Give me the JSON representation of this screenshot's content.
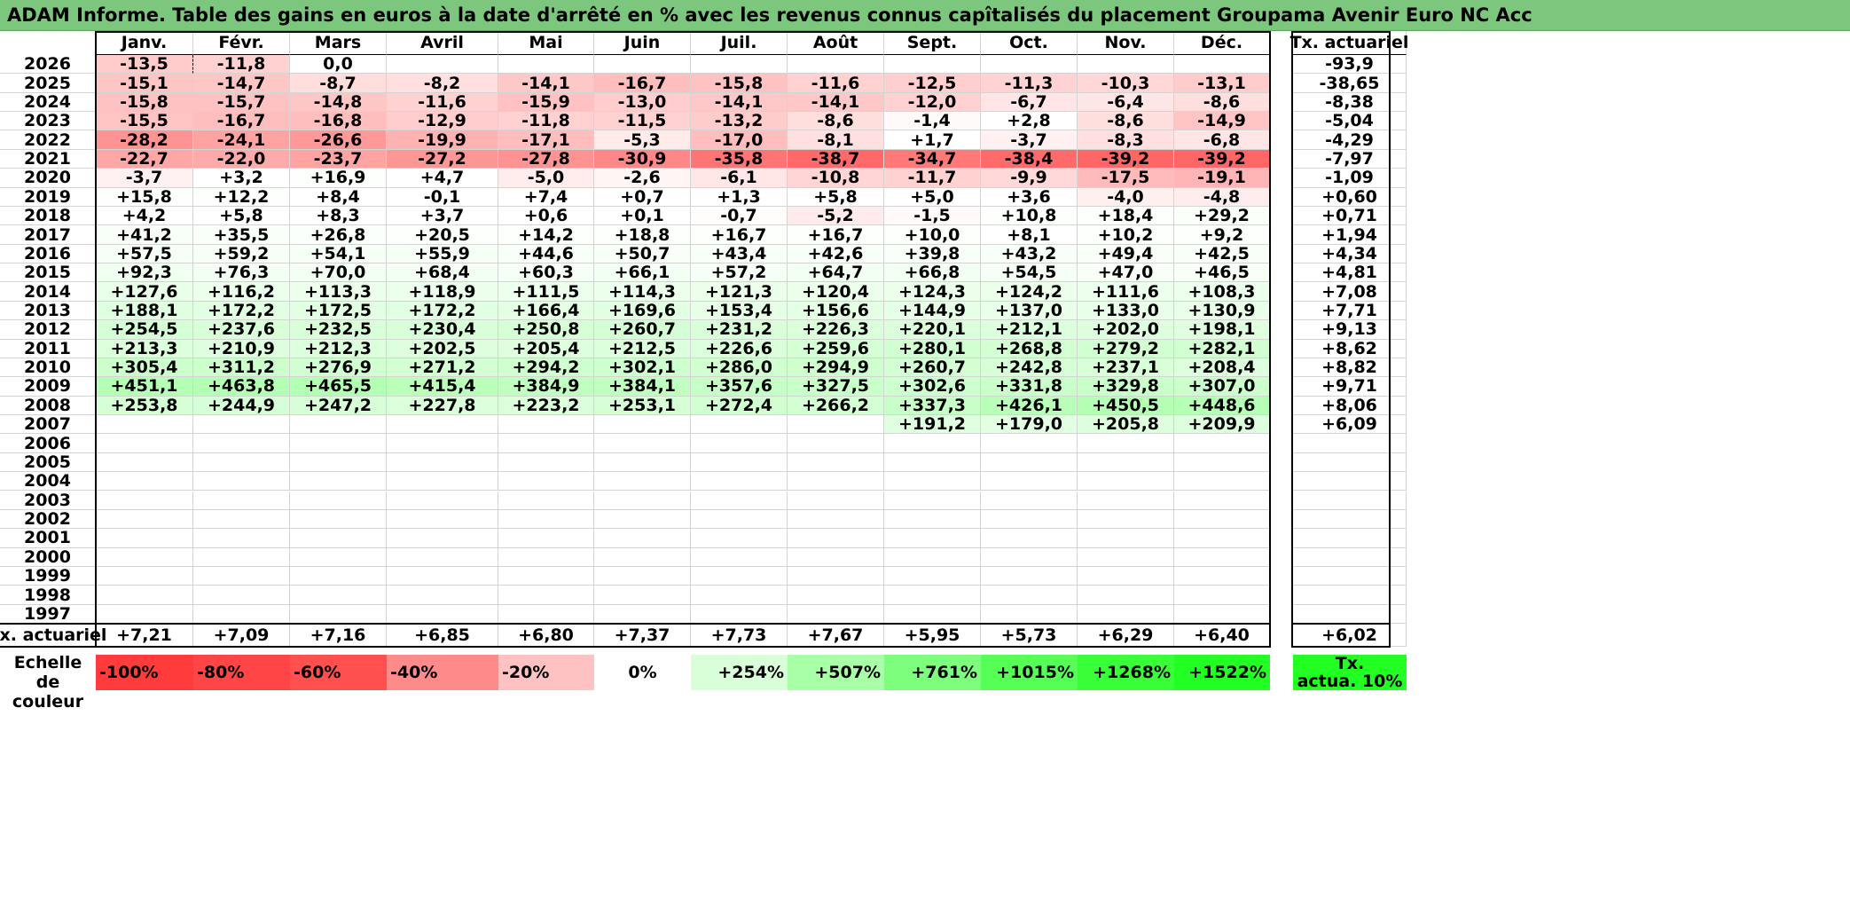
{
  "title": "ADAM Informe. Table des gains en euros à la date d'arrêté en % avec les revenus connus capîtalisés du placement Groupama Avenir Euro NC Acc",
  "months": [
    "Janv.",
    "Févr.",
    "Mars",
    "Avril",
    "Mai",
    "Juin",
    "Juil.",
    "Août",
    "Sept.",
    "Oct.",
    "Nov.",
    "Déc."
  ],
  "rate_header": "Tx. actuariel",
  "rows": [
    {
      "year": "2026",
      "values": [
        "-13,5",
        "-11,8",
        "0,0",
        "",
        "",
        "",
        "",
        "",
        "",
        "",
        "",
        ""
      ],
      "rate": "-93,9"
    },
    {
      "year": "2025",
      "values": [
        "-15,1",
        "-14,7",
        "-8,7",
        "-8,2",
        "-14,1",
        "-16,7",
        "-15,8",
        "-11,6",
        "-12,5",
        "-11,3",
        "-10,3",
        "-13,1"
      ],
      "rate": "-38,65"
    },
    {
      "year": "2024",
      "values": [
        "-15,8",
        "-15,7",
        "-14,8",
        "-11,6",
        "-15,9",
        "-13,0",
        "-14,1",
        "-14,1",
        "-12,0",
        "-6,7",
        "-6,4",
        "-8,6"
      ],
      "rate": "-8,38"
    },
    {
      "year": "2023",
      "values": [
        "-15,5",
        "-16,7",
        "-16,8",
        "-12,9",
        "-11,8",
        "-11,5",
        "-13,2",
        "-8,6",
        "-1,4",
        "+2,8",
        "-8,6",
        "-14,9"
      ],
      "rate": "-5,04"
    },
    {
      "year": "2022",
      "values": [
        "-28,2",
        "-24,1",
        "-26,6",
        "-19,9",
        "-17,1",
        "-5,3",
        "-17,0",
        "-8,1",
        "+1,7",
        "-3,7",
        "-8,3",
        "-6,8"
      ],
      "rate": "-4,29"
    },
    {
      "year": "2021",
      "values": [
        "-22,7",
        "-22,0",
        "-23,7",
        "-27,2",
        "-27,8",
        "-30,9",
        "-35,8",
        "-38,7",
        "-34,7",
        "-38,4",
        "-39,2",
        "-39,2"
      ],
      "rate": "-7,97"
    },
    {
      "year": "2020",
      "values": [
        "-3,7",
        "+3,2",
        "+16,9",
        "+4,7",
        "-5,0",
        "-2,6",
        "-6,1",
        "-10,8",
        "-11,7",
        "-9,9",
        "-17,5",
        "-19,1"
      ],
      "rate": "-1,09"
    },
    {
      "year": "2019",
      "values": [
        "+15,8",
        "+12,2",
        "+8,4",
        "-0,1",
        "+7,4",
        "+0,7",
        "+1,3",
        "+5,8",
        "+5,0",
        "+3,6",
        "-4,0",
        "-4,8"
      ],
      "rate": "+0,60"
    },
    {
      "year": "2018",
      "values": [
        "+4,2",
        "+5,8",
        "+8,3",
        "+3,7",
        "+0,6",
        "+0,1",
        "-0,7",
        "-5,2",
        "-1,5",
        "+10,8",
        "+18,4",
        "+29,2"
      ],
      "rate": "+0,71"
    },
    {
      "year": "2017",
      "values": [
        "+41,2",
        "+35,5",
        "+26,8",
        "+20,5",
        "+14,2",
        "+18,8",
        "+16,7",
        "+16,7",
        "+10,0",
        "+8,1",
        "+10,2",
        "+9,2"
      ],
      "rate": "+1,94"
    },
    {
      "year": "2016",
      "values": [
        "+57,5",
        "+59,2",
        "+54,1",
        "+55,9",
        "+44,6",
        "+50,7",
        "+43,4",
        "+42,6",
        "+39,8",
        "+43,2",
        "+49,4",
        "+42,5"
      ],
      "rate": "+4,34"
    },
    {
      "year": "2015",
      "values": [
        "+92,3",
        "+76,3",
        "+70,0",
        "+68,4",
        "+60,3",
        "+66,1",
        "+57,2",
        "+64,7",
        "+66,8",
        "+54,5",
        "+47,0",
        "+46,5"
      ],
      "rate": "+4,81"
    },
    {
      "year": "2014",
      "values": [
        "+127,6",
        "+116,2",
        "+113,3",
        "+118,9",
        "+111,5",
        "+114,3",
        "+121,3",
        "+120,4",
        "+124,3",
        "+124,2",
        "+111,6",
        "+108,3"
      ],
      "rate": "+7,08"
    },
    {
      "year": "2013",
      "values": [
        "+188,1",
        "+172,2",
        "+172,5",
        "+172,2",
        "+166,4",
        "+169,6",
        "+153,4",
        "+156,6",
        "+144,9",
        "+137,0",
        "+133,0",
        "+130,9"
      ],
      "rate": "+7,71"
    },
    {
      "year": "2012",
      "values": [
        "+254,5",
        "+237,6",
        "+232,5",
        "+230,4",
        "+250,8",
        "+260,7",
        "+231,2",
        "+226,3",
        "+220,1",
        "+212,1",
        "+202,0",
        "+198,1"
      ],
      "rate": "+9,13"
    },
    {
      "year": "2011",
      "values": [
        "+213,3",
        "+210,9",
        "+212,3",
        "+202,5",
        "+205,4",
        "+212,5",
        "+226,6",
        "+259,6",
        "+280,1",
        "+268,8",
        "+279,2",
        "+282,1"
      ],
      "rate": "+8,62"
    },
    {
      "year": "2010",
      "values": [
        "+305,4",
        "+311,2",
        "+276,9",
        "+271,2",
        "+294,2",
        "+302,1",
        "+286,0",
        "+294,9",
        "+260,7",
        "+242,8",
        "+237,1",
        "+208,4"
      ],
      "rate": "+8,82"
    },
    {
      "year": "2009",
      "values": [
        "+451,1",
        "+463,8",
        "+465,5",
        "+415,4",
        "+384,9",
        "+384,1",
        "+357,6",
        "+327,5",
        "+302,6",
        "+331,8",
        "+329,8",
        "+307,0"
      ],
      "rate": "+9,71"
    },
    {
      "year": "2008",
      "values": [
        "+253,8",
        "+244,9",
        "+247,2",
        "+227,8",
        "+223,2",
        "+253,1",
        "+272,4",
        "+266,2",
        "+337,3",
        "+426,1",
        "+450,5",
        "+448,6"
      ],
      "rate": "+8,06"
    },
    {
      "year": "2007",
      "values": [
        "",
        "",
        "",
        "",
        "",
        "",
        "",
        "",
        "+191,2",
        "+179,0",
        "+205,8",
        "+209,9"
      ],
      "rate": "+6,09"
    },
    {
      "year": "2006",
      "values": [
        "",
        "",
        "",
        "",
        "",
        "",
        "",
        "",
        "",
        "",
        "",
        ""
      ],
      "rate": ""
    },
    {
      "year": "2005",
      "values": [
        "",
        "",
        "",
        "",
        "",
        "",
        "",
        "",
        "",
        "",
        "",
        ""
      ],
      "rate": ""
    },
    {
      "year": "2004",
      "values": [
        "",
        "",
        "",
        "",
        "",
        "",
        "",
        "",
        "",
        "",
        "",
        ""
      ],
      "rate": ""
    },
    {
      "year": "2003",
      "values": [
        "",
        "",
        "",
        "",
        "",
        "",
        "",
        "",
        "",
        "",
        "",
        ""
      ],
      "rate": ""
    },
    {
      "year": "2002",
      "values": [
        "",
        "",
        "",
        "",
        "",
        "",
        "",
        "",
        "",
        "",
        "",
        ""
      ],
      "rate": ""
    },
    {
      "year": "2001",
      "values": [
        "",
        "",
        "",
        "",
        "",
        "",
        "",
        "",
        "",
        "",
        "",
        ""
      ],
      "rate": ""
    },
    {
      "year": "2000",
      "values": [
        "",
        "",
        "",
        "",
        "",
        "",
        "",
        "",
        "",
        "",
        "",
        ""
      ],
      "rate": ""
    },
    {
      "year": "1999",
      "values": [
        "",
        "",
        "",
        "",
        "",
        "",
        "",
        "",
        "",
        "",
        "",
        ""
      ],
      "rate": ""
    },
    {
      "year": "1998",
      "values": [
        "",
        "",
        "",
        "",
        "",
        "",
        "",
        "",
        "",
        "",
        "",
        ""
      ],
      "rate": ""
    },
    {
      "year": "1997",
      "values": [
        "",
        "",
        "",
        "",
        "",
        "",
        "",
        "",
        "",
        "",
        "",
        ""
      ],
      "rate": ""
    }
  ],
  "footer": {
    "label": "Tx. actuariel",
    "values": [
      "+7,21",
      "+7,09",
      "+7,16",
      "+6,85",
      "+6,80",
      "+7,37",
      "+7,73",
      "+7,67",
      "+5,95",
      "+5,73",
      "+6,29",
      "+6,40"
    ],
    "rate": "+6,02"
  },
  "scale": {
    "label_line1": "Echelle de",
    "label_line2": "couleur",
    "steps": [
      {
        "text": "-100%",
        "color": "#ff3b3b"
      },
      {
        "text": "-80%",
        "color": "#ff4545"
      },
      {
        "text": "-60%",
        "color": "#ff4f4f"
      },
      {
        "text": "-40%",
        "color": "#ff8a8a"
      },
      {
        "text": "-20%",
        "color": "#ffc2c2"
      },
      {
        "text": "0%",
        "color": "#ffffff"
      },
      {
        "text": "+254%",
        "color": "#d9ffd9"
      },
      {
        "text": "+507%",
        "color": "#a8ffa8"
      },
      {
        "text": "+761%",
        "color": "#7dff7d"
      },
      {
        "text": "+1015%",
        "color": "#55ff55"
      },
      {
        "text": "+1268%",
        "color": "#38ff38"
      },
      {
        "text": "+1522%",
        "color": "#22ff22"
      }
    ],
    "rate_line1": "Tx.",
    "rate_line2": "actua. 10%",
    "rate_color": "#22ff22"
  },
  "colors": {
    "title_bg": "#7dc67d"
  }
}
